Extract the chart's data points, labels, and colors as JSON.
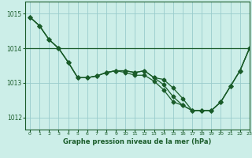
{
  "background_color": "#cceee8",
  "grid_color": "#99cccc",
  "line_color": "#1a5c2a",
  "xlabel": "Graphe pression niveau de la mer (hPa)",
  "xlim": [
    -0.5,
    23
  ],
  "ylim": [
    1011.65,
    1015.35
  ],
  "yticks": [
    1012,
    1013,
    1014,
    1015
  ],
  "xticks": [
    0,
    1,
    2,
    3,
    4,
    5,
    6,
    7,
    8,
    9,
    10,
    11,
    12,
    13,
    14,
    15,
    16,
    17,
    18,
    19,
    20,
    21,
    22,
    23
  ],
  "series1": [
    1014.9,
    1014.65,
    1014.25,
    1014.0,
    1013.6,
    1013.15,
    1013.15,
    1013.2,
    1013.3,
    1013.35,
    1013.35,
    1013.3,
    1013.35,
    1013.15,
    1013.1,
    1012.85,
    1012.55,
    1012.2,
    1012.2,
    1012.2,
    1012.45,
    1012.9,
    1013.35,
    1014.0
  ],
  "series2": [
    1014.9,
    1014.65,
    1014.25,
    1014.0,
    1013.6,
    1013.15,
    1013.15,
    1013.2,
    1013.3,
    1013.35,
    1013.35,
    1013.3,
    1013.35,
    1013.15,
    1012.95,
    1012.6,
    1012.35,
    1012.2,
    1012.2,
    1012.2,
    1012.45,
    1012.9,
    1013.35,
    1014.0
  ],
  "series3": [
    1014.9,
    1014.65,
    1014.25,
    1014.0,
    1013.6,
    1013.15,
    1013.15,
    1013.2,
    1013.3,
    1013.35,
    1013.3,
    1013.22,
    1013.22,
    1013.05,
    1012.8,
    1012.45,
    1012.35,
    1012.2,
    1012.2,
    1012.2,
    1012.45,
    1012.9,
    1013.35,
    1014.0
  ],
  "hline_y": 1014.0,
  "marker": "D",
  "lw": 0.9,
  "ms": 2.5
}
